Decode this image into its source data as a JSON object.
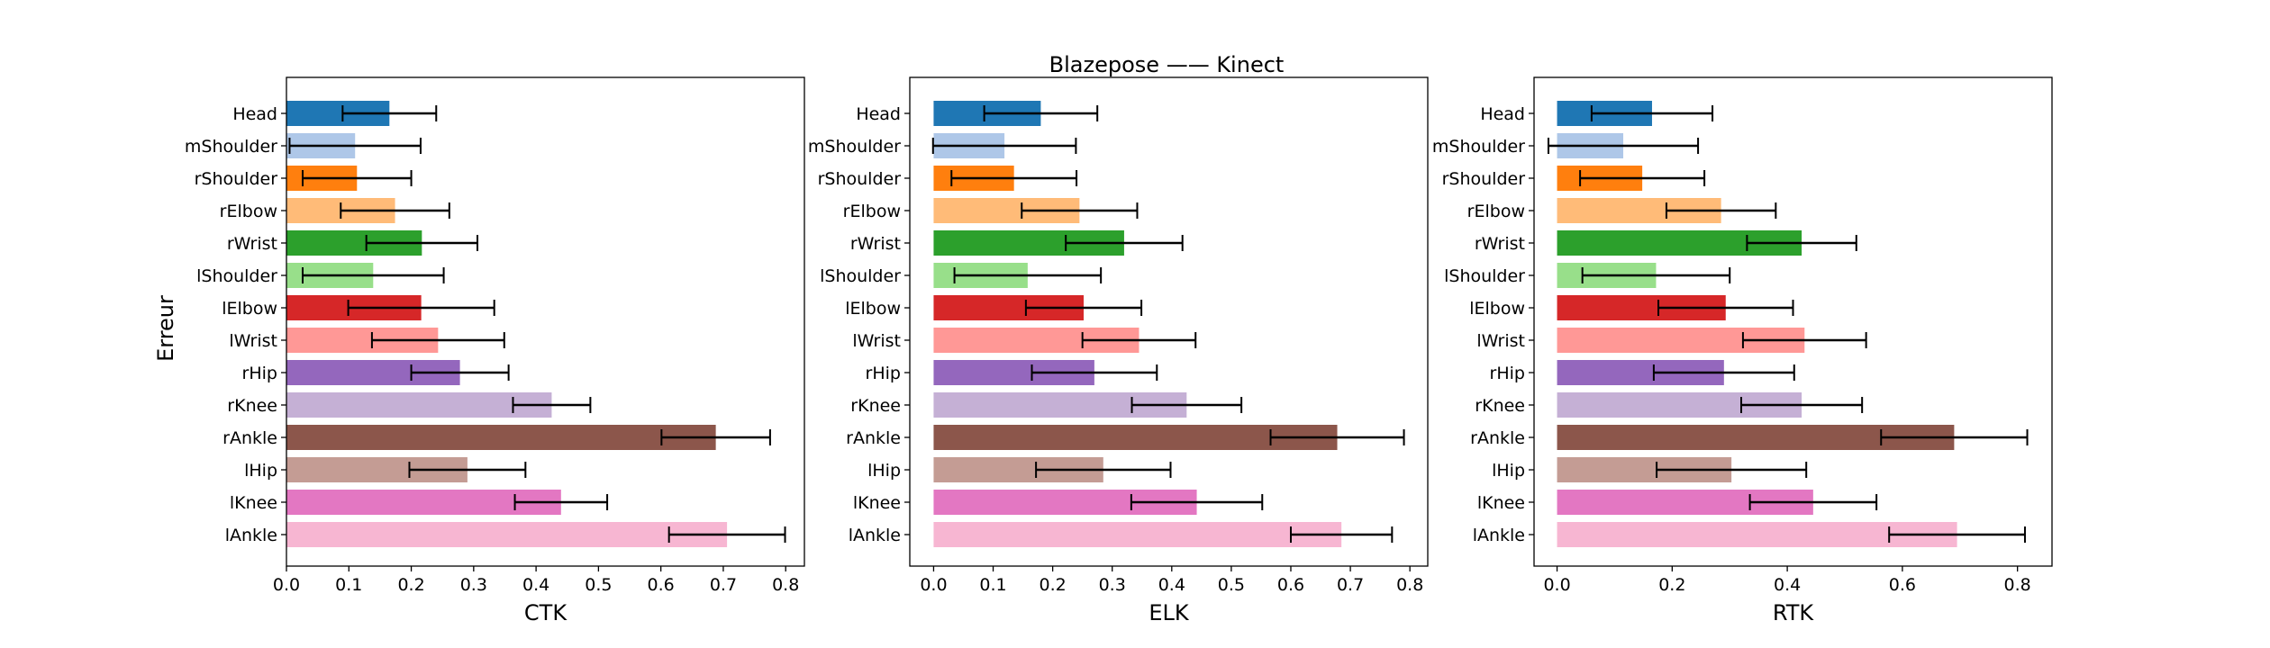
{
  "figure": {
    "suptitle": "Blazepose —— Kinect",
    "ylabel": "Erreur"
  },
  "colors": [
    "#1f77b4",
    "#aec7e8",
    "#ff7f0e",
    "#ffbb78",
    "#2ca02c",
    "#98df8a",
    "#d62728",
    "#ff9896",
    "#9467bd",
    "#c5b0d5",
    "#8c564b",
    "#c49c94",
    "#e377c2",
    "#f7b6d2"
  ],
  "chart_data": [
    {
      "type": "bar",
      "orientation": "horizontal",
      "xlabel": "CTK",
      "xlim": [
        0,
        0.83
      ],
      "xticks": [
        "0.0",
        "0.1",
        "0.2",
        "0.3",
        "0.4",
        "0.5",
        "0.6",
        "0.7",
        "0.8"
      ],
      "categories": [
        "Head",
        "mShoulder",
        "rShoulder",
        "rElbow",
        "rWrist",
        "lShoulder",
        "lElbow",
        "lWrist",
        "rHip",
        "rKnee",
        "rAnkle",
        "lHip",
        "lKnee",
        "lAnkle"
      ],
      "values": [
        0.165,
        0.11,
        0.113,
        0.174,
        0.217,
        0.139,
        0.216,
        0.243,
        0.278,
        0.425,
        0.688,
        0.29,
        0.44,
        0.706
      ],
      "errors": [
        0.075,
        0.105,
        0.087,
        0.087,
        0.089,
        0.113,
        0.117,
        0.106,
        0.078,
        0.062,
        0.087,
        0.093,
        0.074,
        0.093
      ],
      "grid": false
    },
    {
      "type": "bar",
      "orientation": "horizontal",
      "xlabel": "ELK",
      "xlim": [
        -0.04,
        0.83
      ],
      "xticks": [
        "0.0",
        "0.1",
        "0.2",
        "0.3",
        "0.4",
        "0.5",
        "0.6",
        "0.7",
        "0.8"
      ],
      "categories": [
        "Head",
        "mShoulder",
        "rShoulder",
        "rElbow",
        "rWrist",
        "lShoulder",
        "lElbow",
        "lWrist",
        "rHip",
        "rKnee",
        "rAnkle",
        "lHip",
        "lKnee",
        "lAnkle"
      ],
      "values": [
        0.18,
        0.119,
        0.135,
        0.245,
        0.32,
        0.158,
        0.252,
        0.345,
        0.27,
        0.425,
        0.678,
        0.285,
        0.442,
        0.685
      ],
      "errors": [
        0.095,
        0.12,
        0.105,
        0.097,
        0.098,
        0.123,
        0.097,
        0.095,
        0.105,
        0.092,
        0.112,
        0.113,
        0.11,
        0.085
      ],
      "grid": false
    },
    {
      "type": "bar",
      "orientation": "horizontal",
      "xlabel": "RTK",
      "xlim": [
        -0.04,
        0.86
      ],
      "xticks": [
        "0.0",
        "0.2",
        "0.4",
        "0.6",
        "0.8"
      ],
      "categories": [
        "Head",
        "mShoulder",
        "rShoulder",
        "rElbow",
        "rWrist",
        "lShoulder",
        "lElbow",
        "lWrist",
        "rHip",
        "rKnee",
        "rAnkle",
        "lHip",
        "lKnee",
        "lAnkle"
      ],
      "values": [
        0.165,
        0.115,
        0.148,
        0.285,
        0.425,
        0.172,
        0.293,
        0.43,
        0.29,
        0.425,
        0.69,
        0.303,
        0.445,
        0.695
      ],
      "errors": [
        0.105,
        0.13,
        0.108,
        0.095,
        0.095,
        0.128,
        0.117,
        0.107,
        0.122,
        0.105,
        0.127,
        0.13,
        0.11,
        0.118
      ],
      "grid": false
    }
  ]
}
